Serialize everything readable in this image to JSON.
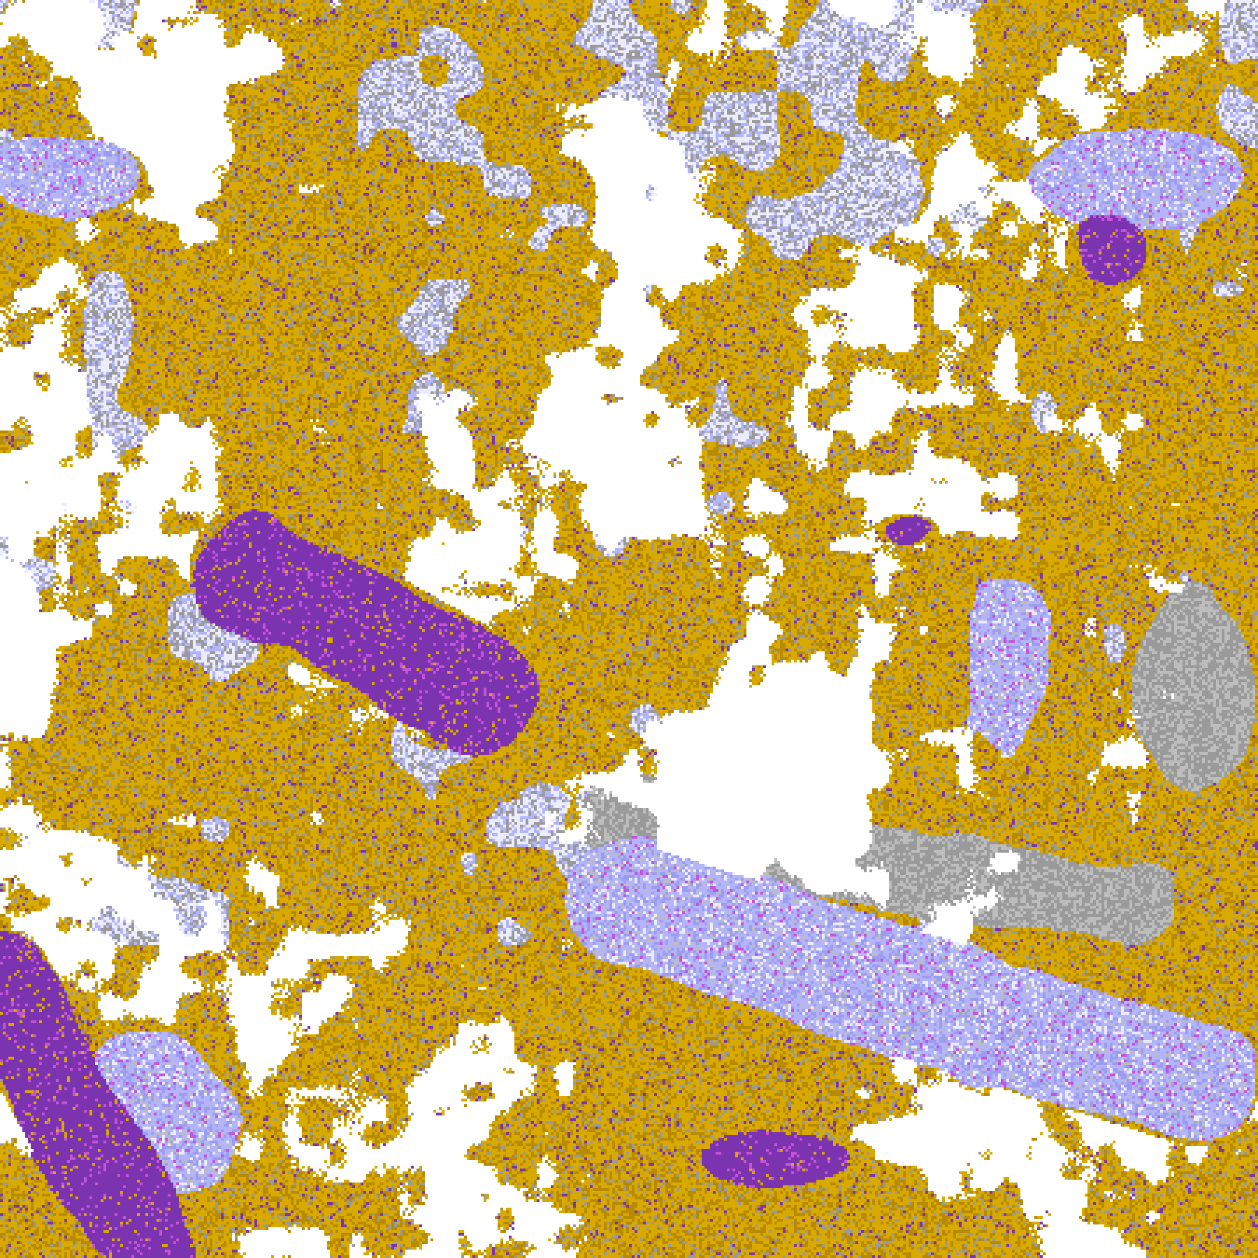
{
  "palette": {
    "clear": "#ffffff",
    "gold": "#d8aa00",
    "dark_gold": "#b88a00",
    "purple": "#7b33b0",
    "magenta": "#c652d8",
    "lavender": "#b4b4f8",
    "periwinkle": "#9c9cf0",
    "pale": "#ececff",
    "gray": "#9a9a9a",
    "light_gray": "#bdbdbd"
  }
}
